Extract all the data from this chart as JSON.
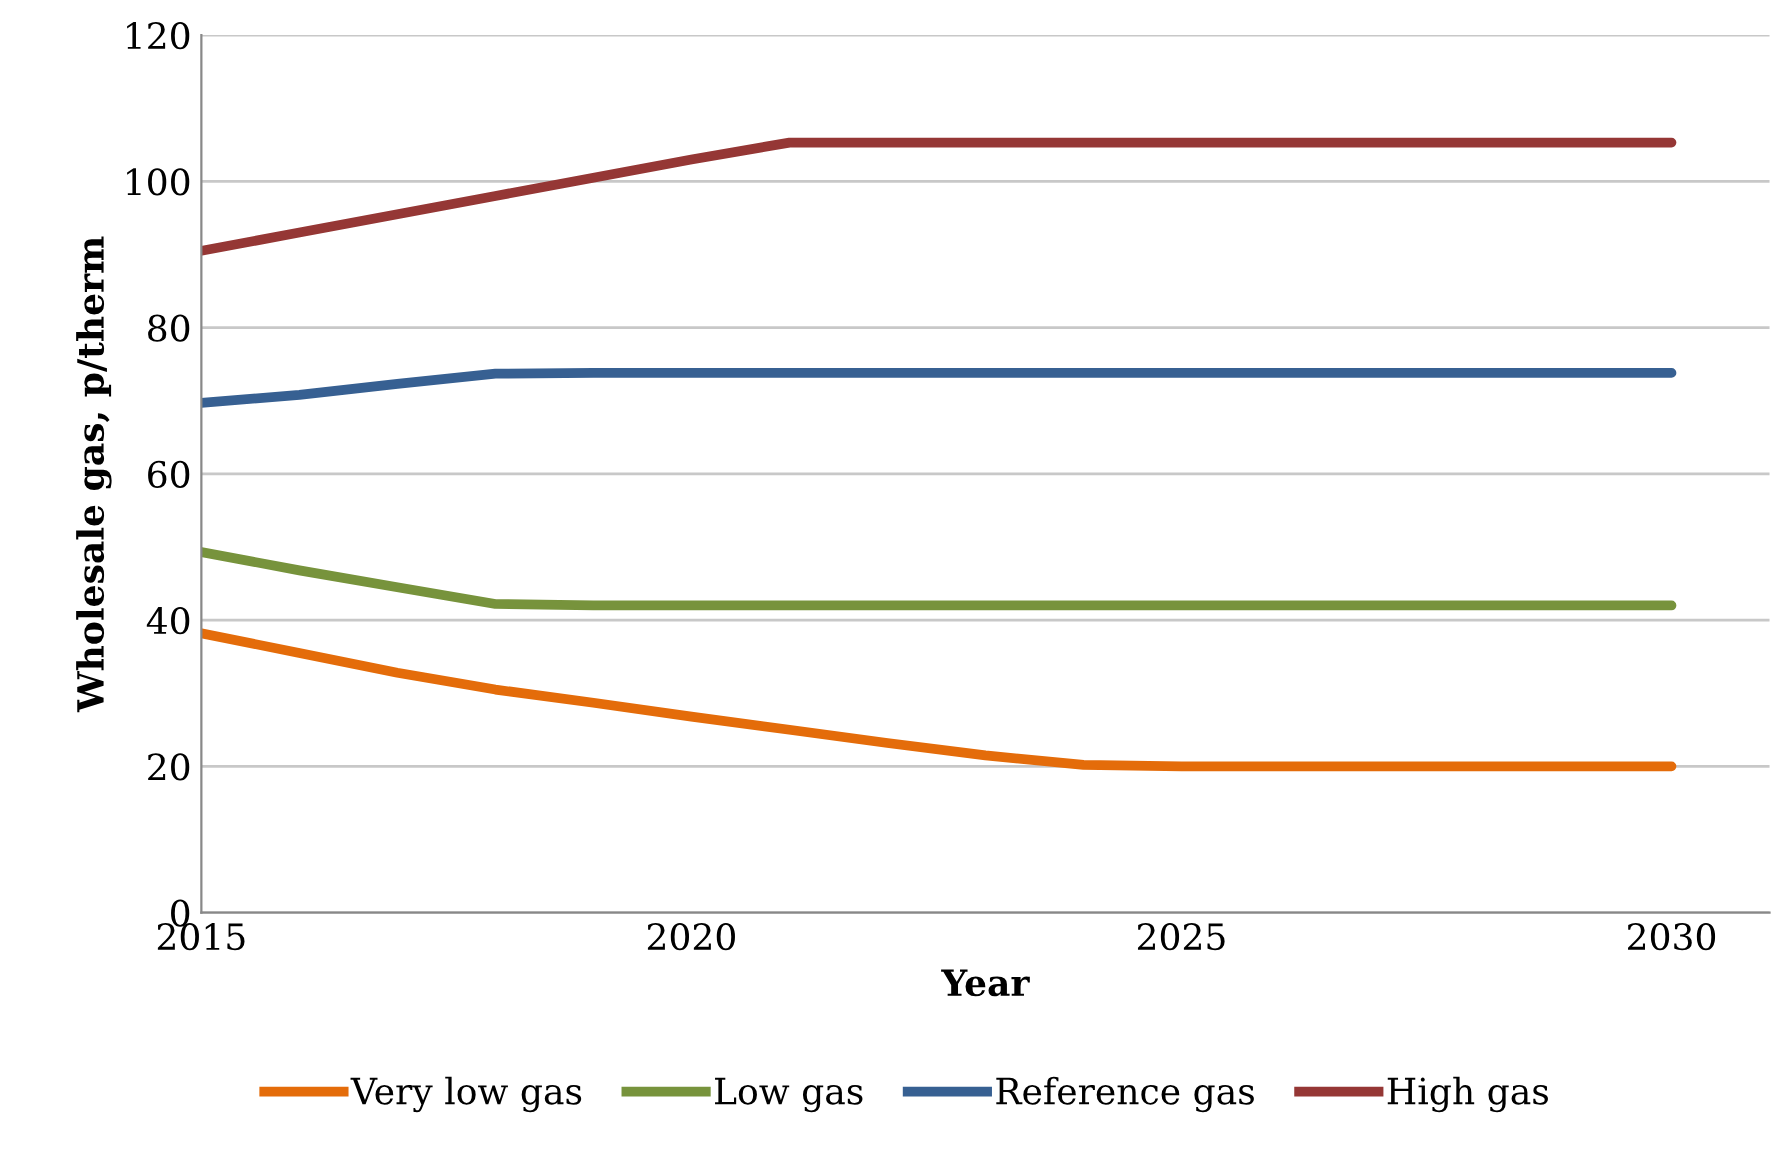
{
  "chart_data": {
    "type": "line",
    "xlabel": "Year",
    "ylabel": "Wholesale gas, p/therm",
    "x": [
      2015,
      2016,
      2017,
      2018,
      2019,
      2020,
      2021,
      2022,
      2023,
      2024,
      2025,
      2026,
      2027,
      2028,
      2029,
      2030
    ],
    "series": [
      {
        "name": "Very low gas",
        "color": "#e46c0a",
        "values": [
          38.2,
          35.5,
          32.8,
          30.5,
          28.7,
          26.8,
          25,
          23.2,
          21.5,
          20.2,
          20,
          20,
          20,
          20,
          20,
          20
        ]
      },
      {
        "name": "Low gas",
        "color": "#77933c",
        "values": [
          49.3,
          46.8,
          44.5,
          42.2,
          42,
          42,
          42,
          42,
          42,
          42,
          42,
          42,
          42,
          42,
          42,
          42
        ]
      },
      {
        "name": "Reference gas",
        "color": "#376092",
        "values": [
          69.7,
          70.8,
          72.3,
          73.7,
          73.8,
          73.8,
          73.8,
          73.8,
          73.8,
          73.8,
          73.8,
          73.8,
          73.8,
          73.8,
          73.8,
          73.8
        ]
      },
      {
        "name": "High gas",
        "color": "#953735",
        "values": [
          90.5,
          93,
          95.5,
          98,
          100.5,
          103,
          105.3,
          105.3,
          105.3,
          105.3,
          105.3,
          105.3,
          105.3,
          105.3,
          105.3,
          105.3
        ]
      }
    ],
    "xlim": [
      2015,
      2031
    ],
    "xticks": [
      2015,
      2020,
      2025,
      2030
    ],
    "ylim": [
      0,
      120
    ],
    "yticks": [
      0,
      20,
      40,
      60,
      80,
      100,
      120
    ],
    "grid": "y",
    "legend": "bottom",
    "marker": "none",
    "line_style": "solid"
  }
}
